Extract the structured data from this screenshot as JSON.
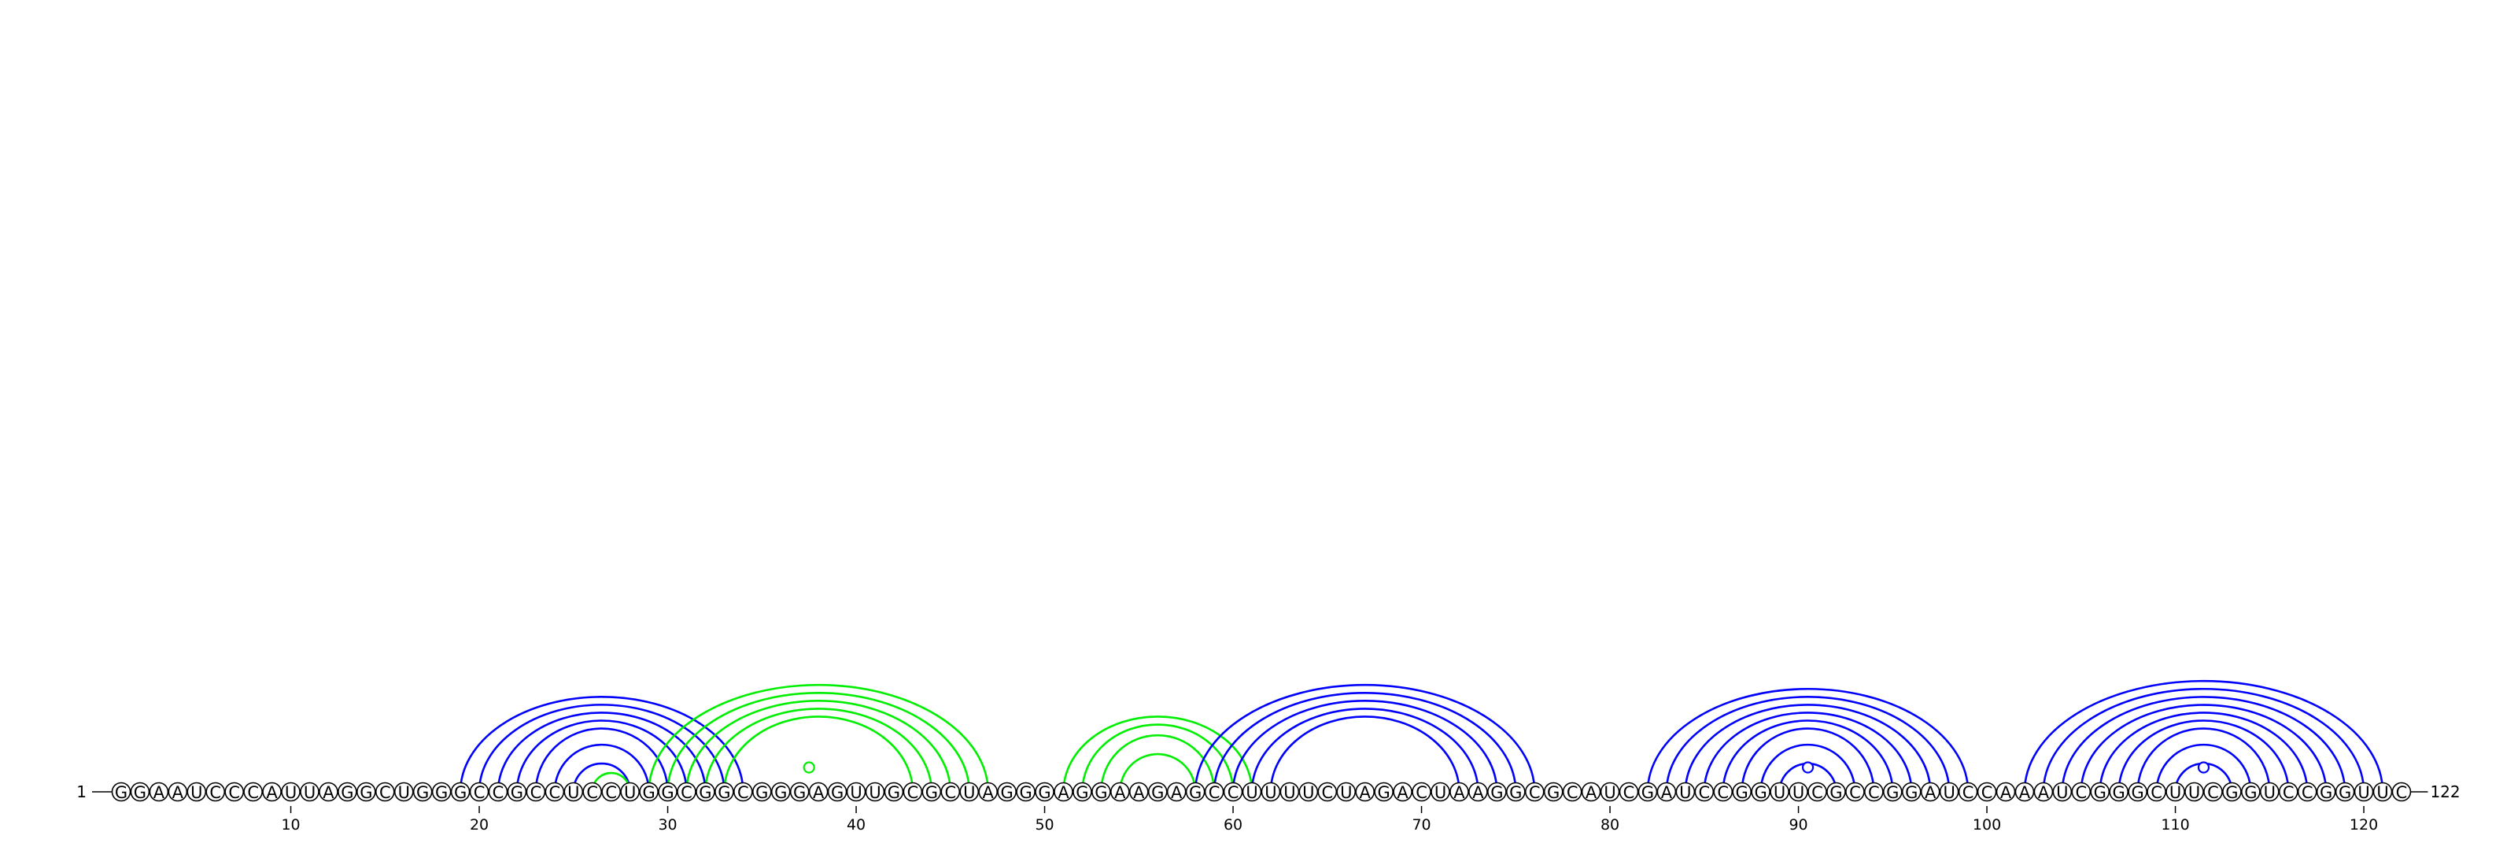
{
  "sequence": {
    "start_label": "1",
    "end_label": "122",
    "bases": "GGAAUCCCAUUAGGCUGGGCCGCCUCCUGGCGGCGGGAGUUGCGCUAGGGAGGAAGAGCCUUUUCUAGACUAAGGCGCAUCGAUCCGGUUCGCCGGAUCCAAAUCGGGCUUCGGUCCGGUUC"
  },
  "axis": {
    "ticks": [
      10,
      20,
      30,
      40,
      50,
      60,
      70,
      80,
      90,
      100,
      110,
      120
    ]
  },
  "colors": {
    "nested": "#0000ff",
    "pseudoknot": "#00ee00",
    "ink": "#000000"
  },
  "helices": [
    {
      "color": "nested",
      "pairs": [
        [
          19,
          34
        ],
        [
          20,
          33
        ],
        [
          21,
          32
        ],
        [
          22,
          31
        ],
        [
          23,
          30
        ],
        [
          24,
          29
        ],
        [
          25,
          28
        ]
      ]
    },
    {
      "color": "pseudoknot",
      "pairs": [
        [
          26,
          28
        ]
      ]
    },
    {
      "color": "pseudoknot",
      "pairs": [
        [
          29,
          47
        ],
        [
          30,
          46
        ],
        [
          31,
          45
        ],
        [
          32,
          44
        ],
        [
          33,
          43
        ]
      ]
    },
    {
      "color": "pseudoknot",
      "pairs": [
        [
          37,
          38
        ]
      ]
    },
    {
      "color": "pseudoknot",
      "pairs": [
        [
          51,
          61
        ],
        [
          52,
          60
        ],
        [
          53,
          59
        ],
        [
          54,
          58
        ]
      ]
    },
    {
      "color": "nested",
      "pairs": [
        [
          58,
          76
        ],
        [
          59,
          75
        ],
        [
          60,
          74
        ],
        [
          61,
          73
        ],
        [
          62,
          72
        ]
      ]
    },
    {
      "color": "nested",
      "pairs": [
        [
          82,
          99
        ],
        [
          83,
          98
        ],
        [
          84,
          97
        ],
        [
          85,
          96
        ],
        [
          86,
          95
        ],
        [
          87,
          94
        ],
        [
          88,
          93
        ],
        [
          89,
          92
        ],
        [
          90,
          91
        ]
      ]
    },
    {
      "color": "nested",
      "pairs": [
        [
          102,
          121
        ],
        [
          103,
          120
        ],
        [
          104,
          119
        ],
        [
          105,
          118
        ],
        [
          106,
          117
        ],
        [
          107,
          116
        ],
        [
          108,
          115
        ],
        [
          109,
          114
        ],
        [
          110,
          113
        ],
        [
          111,
          112
        ]
      ]
    }
  ]
}
